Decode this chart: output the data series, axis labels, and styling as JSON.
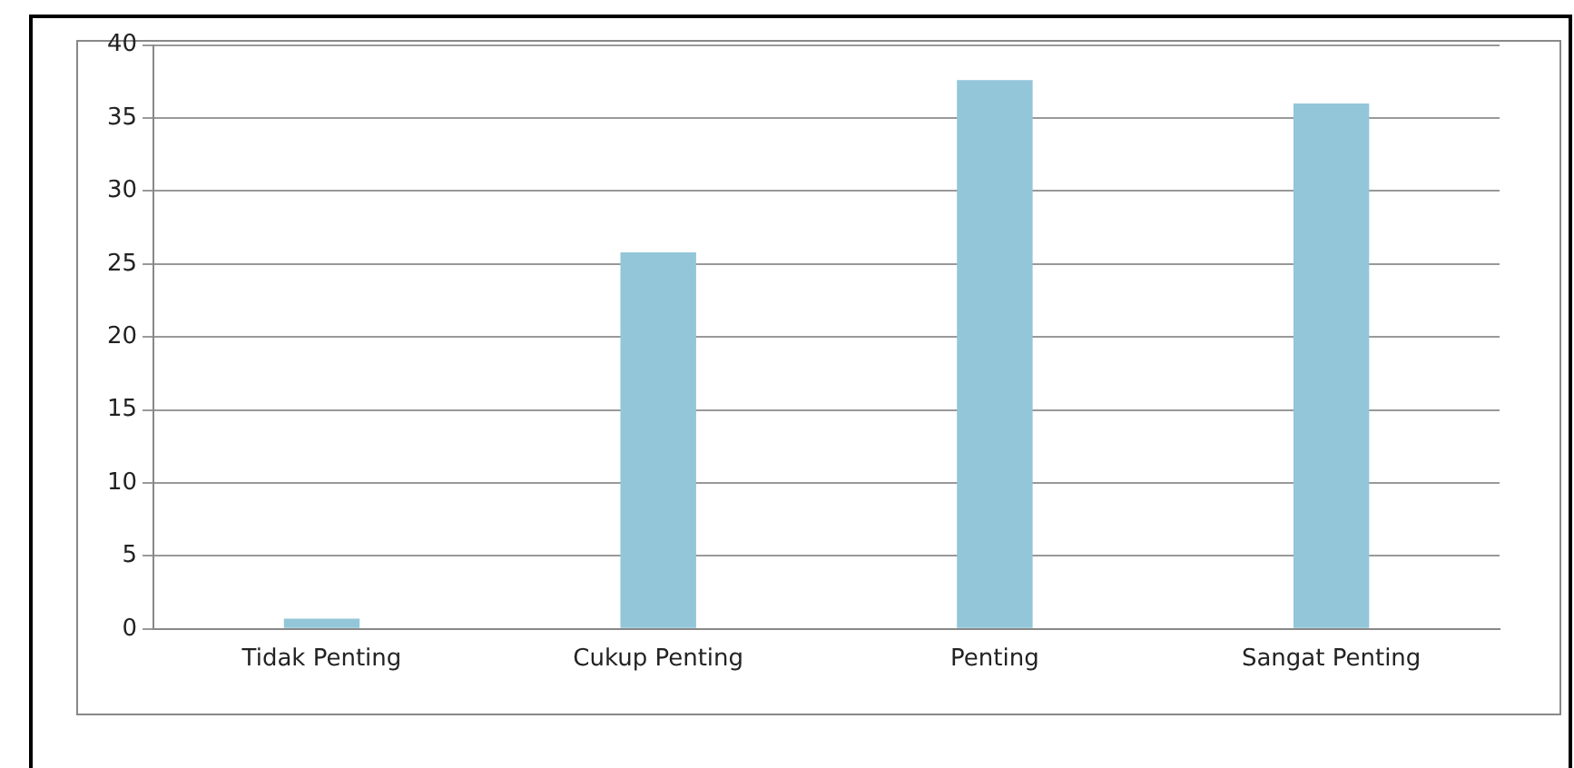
{
  "chart_data": {
    "type": "bar",
    "categories": [
      "Tidak Penting",
      "Cukup Penting",
      "Penting",
      "Sangat Penting"
    ],
    "values": [
      0.7,
      25.8,
      37.6,
      36
    ],
    "color": "#93c6d9",
    "ylim": [
      0,
      40
    ],
    "yticks": [
      0,
      5,
      10,
      15,
      20,
      25,
      30,
      35,
      40
    ],
    "grid": "y",
    "legend": false
  }
}
